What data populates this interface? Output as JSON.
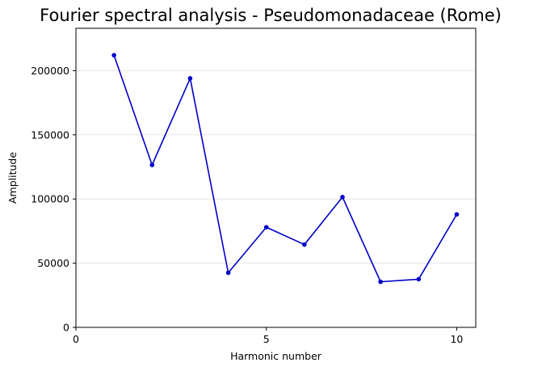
{
  "chart_data": {
    "type": "line",
    "title": "Fourier spectral analysis - Pseudomonadaceae (Rome)",
    "xlabel": "Harmonic number",
    "ylabel": "Amplitude",
    "xlim": [
      0,
      10.5
    ],
    "ylim": [
      0,
      233000
    ],
    "x_ticks": [
      0,
      5,
      10
    ],
    "y_ticks": [
      0,
      50000,
      100000,
      150000,
      200000
    ],
    "grid": "horizontal",
    "series": [
      {
        "color": "#0000c8",
        "marker": "circle",
        "x": [
          1,
          2,
          3,
          4,
          5,
          6,
          7,
          8,
          9,
          10
        ],
        "y": [
          212000,
          126500,
          194000,
          42500,
          78000,
          64500,
          101500,
          35500,
          37500,
          88000
        ]
      }
    ]
  }
}
